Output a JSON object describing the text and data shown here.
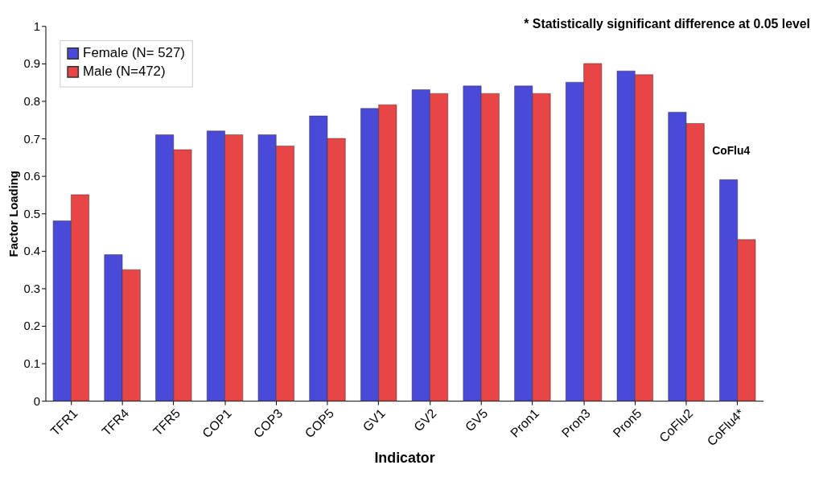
{
  "chart_data": {
    "type": "bar",
    "xlabel": "Indicator",
    "ylabel": "Factor Loading",
    "categories": [
      "TFR1",
      "TFR4",
      "TFR5",
      "COP1",
      "COP3",
      "COP5",
      "GV1",
      "GV2",
      "GV5",
      "Pron1",
      "Pron3",
      "Pron5",
      "CoFlu2",
      "CoFlu4*"
    ],
    "series": [
      {
        "name": "Female (N= 527)",
        "color": "#4a4ad8",
        "values": [
          0.48,
          0.39,
          0.71,
          0.72,
          0.71,
          0.76,
          0.78,
          0.83,
          0.84,
          0.84,
          0.85,
          0.88,
          0.77,
          0.59
        ]
      },
      {
        "name": "Male (N=472)",
        "color": "#e84646",
        "values": [
          0.55,
          0.35,
          0.67,
          0.71,
          0.68,
          0.7,
          0.79,
          0.82,
          0.82,
          0.82,
          0.9,
          0.87,
          0.74,
          0.43
        ]
      }
    ],
    "ylim": [
      0,
      1
    ],
    "yticks": [
      0,
      0.1,
      0.2,
      0.3,
      0.4,
      0.5,
      0.6,
      0.7,
      0.8,
      0.9,
      1
    ],
    "grid": false,
    "legend": "top left",
    "annotations": [
      "* Statistically significant difference at 0.05 level",
      "CoFlu4"
    ]
  }
}
